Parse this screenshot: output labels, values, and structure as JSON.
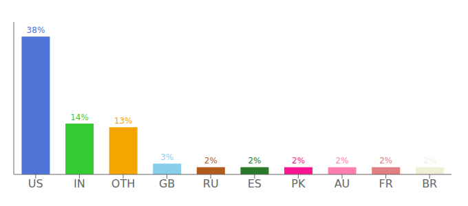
{
  "chart_data": {
    "type": "bar",
    "categories": [
      "US",
      "IN",
      "OTH",
      "GB",
      "RU",
      "ES",
      "PK",
      "AU",
      "FR",
      "BR"
    ],
    "values": [
      38,
      14,
      13,
      3,
      2,
      2,
      2,
      2,
      2,
      2
    ],
    "value_labels": [
      "38%",
      "14%",
      "13%",
      "3%",
      "2%",
      "2%",
      "2%",
      "2%",
      "2%",
      "2%"
    ],
    "colors": [
      "#4f72d6",
      "#33cc33",
      "#f5a500",
      "#87ceeb",
      "#b35a1f",
      "#2a7a2a",
      "#ff1493",
      "#ff80b0",
      "#e08080",
      "#f0f0d8"
    ],
    "ylim": [
      0,
      42
    ],
    "data_labels": true,
    "tick_labels": "x",
    "grid": false
  }
}
